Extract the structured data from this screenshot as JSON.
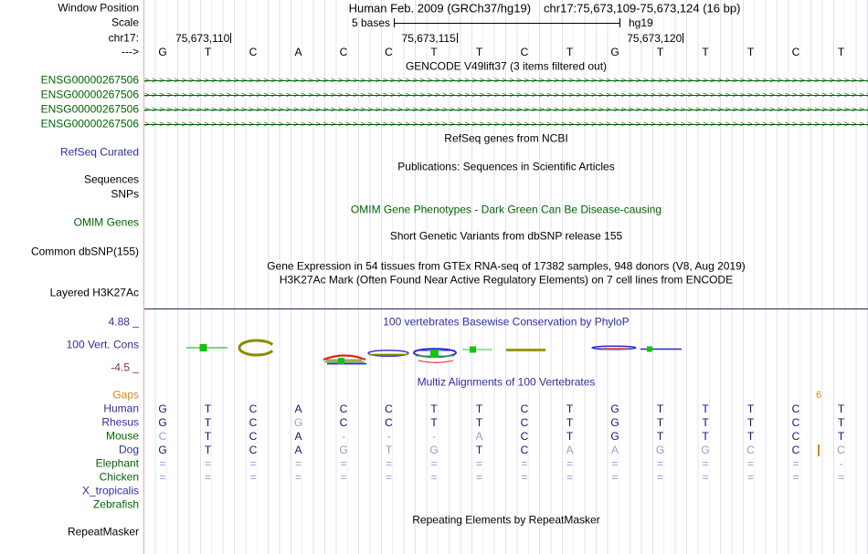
{
  "header": {
    "assembly_title": "Human Feb. 2009 (GRCh37/hg19)",
    "position_title": "chr17:75,673,109-75,673,124 (16 bp)",
    "row_labels": {
      "window_position": "Window Position",
      "scale": "Scale",
      "chrom": "chr17:",
      "direction": "--->"
    },
    "scale": {
      "value": "5 bases",
      "genome": "hg19"
    },
    "coordinates": [
      {
        "text": "75,673,110"
      },
      {
        "text": "75,673,115"
      },
      {
        "text": "75,673,120"
      }
    ],
    "bases": [
      "G",
      "T",
      "C",
      "A",
      "C",
      "C",
      "T",
      "T",
      "C",
      "T",
      "G",
      "T",
      "T",
      "T",
      "C",
      "T"
    ]
  },
  "tracks": {
    "gencode": {
      "title": "GENCODE V49lift37 (3 items filtered out)",
      "items": [
        "ENSG00000267506",
        "ENSG00000267506",
        "ENSG00000267506",
        "ENSG00000267506"
      ]
    },
    "refseq": {
      "center": "RefSeq genes from NCBI",
      "label": "RefSeq Curated"
    },
    "publications": {
      "center": "Publications: Sequences in Scientific Articles"
    },
    "sequences": {
      "label": "Sequences"
    },
    "snps": {
      "label": "SNPs"
    },
    "omim": {
      "center": "OMIM Gene Phenotypes - Dark Green Can Be Disease-causing",
      "label": "OMIM Genes"
    },
    "dbsnp": {
      "center": "Short Genetic Variants from dbSNP release 155",
      "label": "Common dbSNP(155)"
    },
    "gtex": {
      "center": "Gene Expression in 54 tissues from GTEx RNA-seq of 17382 samples, 948 donors (V8, Aug 2019)"
    },
    "h3k27ac": {
      "center": "H3K27Ac Mark (Often Found Near Active Regulatory Elements) on 7 cell lines from ENCODE",
      "label": "Layered H3K27Ac"
    },
    "conservation": {
      "center": "100 vertebrates Basewise Conservation by PhyloP",
      "label": "100 Vert. Cons",
      "axis_max": "4.88 _",
      "axis_min": "-4.5 _"
    },
    "multiz": {
      "center": "Multiz Alignments of 100 Vertebrates",
      "gaps_label": "Gaps",
      "insert_size": "6",
      "rows": [
        {
          "name": "Human",
          "label_color": "blue",
          "cells": [
            [
              "G",
              1
            ],
            [
              "T",
              1
            ],
            [
              "C",
              1
            ],
            [
              "A",
              1
            ],
            [
              "C",
              1
            ],
            [
              "C",
              1
            ],
            [
              "T",
              1
            ],
            [
              "T",
              1
            ],
            [
              "C",
              1
            ],
            [
              "T",
              1
            ],
            [
              "G",
              1
            ],
            [
              "T",
              1
            ],
            [
              "T",
              1
            ],
            [
              "T",
              1
            ],
            [
              "C",
              1
            ],
            [
              "T",
              1
            ]
          ]
        },
        {
          "name": "Rhesus",
          "label_color": "blue",
          "cells": [
            [
              "G",
              1
            ],
            [
              "T",
              1
            ],
            [
              "C",
              1
            ],
            [
              "G",
              0
            ],
            [
              "C",
              1
            ],
            [
              "C",
              1
            ],
            [
              "T",
              1
            ],
            [
              "T",
              1
            ],
            [
              "C",
              1
            ],
            [
              "T",
              1
            ],
            [
              "G",
              1
            ],
            [
              "T",
              1
            ],
            [
              "T",
              1
            ],
            [
              "T",
              1
            ],
            [
              "C",
              1
            ],
            [
              "T",
              1
            ]
          ]
        },
        {
          "name": "Mouse",
          "label_color": "green",
          "cells": [
            [
              "C",
              0
            ],
            [
              "T",
              1
            ],
            [
              "C",
              1
            ],
            [
              "A",
              1
            ],
            [
              "-",
              0
            ],
            [
              "-",
              0
            ],
            [
              "-",
              0
            ],
            [
              "A",
              0
            ],
            [
              "C",
              1
            ],
            [
              "T",
              1
            ],
            [
              "G",
              1
            ],
            [
              "T",
              1
            ],
            [
              "T",
              1
            ],
            [
              "T",
              1
            ],
            [
              "C",
              1
            ],
            [
              "T",
              1
            ]
          ]
        },
        {
          "name": "Dog",
          "label_color": "blue",
          "cells": [
            [
              "G",
              1
            ],
            [
              "T",
              1
            ],
            [
              "C",
              1
            ],
            [
              "A",
              1
            ],
            [
              "G",
              0
            ],
            [
              "T",
              0
            ],
            [
              "G",
              0
            ],
            [
              "T",
              1
            ],
            [
              "C",
              1
            ],
            [
              "A",
              0
            ],
            [
              "A",
              0
            ],
            [
              "G",
              0
            ],
            [
              "G",
              0
            ],
            [
              "C",
              0
            ],
            [
              "C",
              1
            ],
            [
              "C",
              0
            ]
          ]
        },
        {
          "name": "Elephant",
          "label_color": "green",
          "cells": [
            [
              "=",
              0
            ],
            [
              "=",
              0
            ],
            [
              "=",
              0
            ],
            [
              "=",
              0
            ],
            [
              "=",
              0
            ],
            [
              "=",
              0
            ],
            [
              "=",
              0
            ],
            [
              "=",
              0
            ],
            [
              "=",
              0
            ],
            [
              "=",
              0
            ],
            [
              "=",
              0
            ],
            [
              "=",
              0
            ],
            [
              "=",
              0
            ],
            [
              "=",
              0
            ],
            [
              "=",
              0
            ],
            [
              "-",
              0
            ]
          ]
        },
        {
          "name": "Chicken",
          "label_color": "green",
          "cells": [
            [
              "=",
              0
            ],
            [
              "=",
              0
            ],
            [
              "=",
              0
            ],
            [
              "=",
              0
            ],
            [
              "=",
              0
            ],
            [
              "=",
              0
            ],
            [
              "=",
              0
            ],
            [
              "=",
              0
            ],
            [
              "=",
              0
            ],
            [
              "=",
              0
            ],
            [
              "=",
              0
            ],
            [
              "=",
              0
            ],
            [
              "=",
              0
            ],
            [
              "=",
              0
            ],
            [
              "=",
              0
            ],
            [
              "=",
              0
            ]
          ]
        },
        {
          "name": "X_tropicalis",
          "label_color": "blue",
          "cells": []
        },
        {
          "name": "Zebrafish",
          "label_color": "green",
          "cells": []
        }
      ]
    },
    "repeatmasker": {
      "center": "Repeating Elements by RepeatMasker",
      "label": "RepeatMasker"
    }
  },
  "colors": {
    "track_label_blue": "#2e2ea2",
    "dark_green": "#006400",
    "orange": "#d8860b",
    "axis_min_red": "#8b3030",
    "base_dark": "#14146e",
    "base_dim": "#9a9ad2",
    "grid_line": "#e0e0f3",
    "left_border_pink": "#f2a6a6"
  }
}
